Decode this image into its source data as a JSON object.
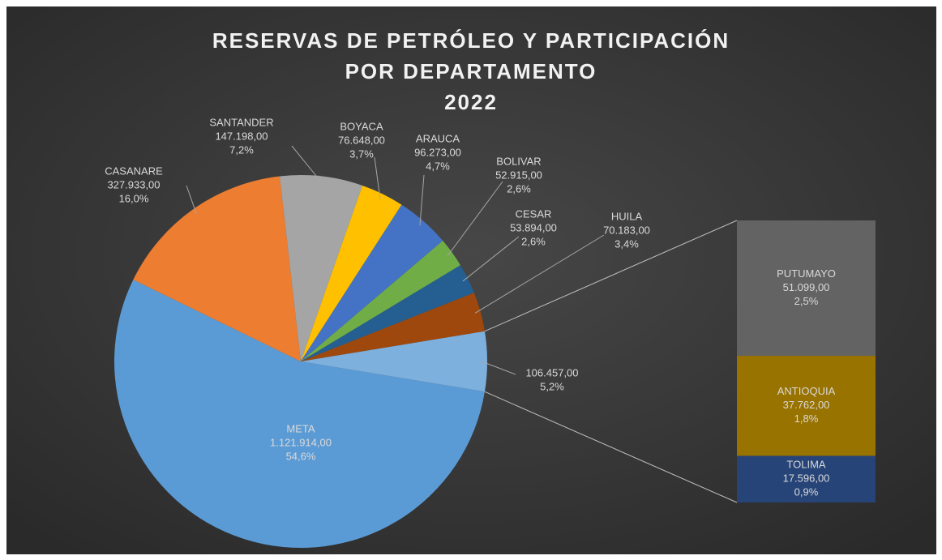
{
  "chart_data": {
    "type": "pie-of-bar",
    "title": [
      "RESERVAS DE PETRÓLEO Y PARTICIPACIÓN",
      "POR DEPARTAMENTO",
      "2022"
    ],
    "categories": [
      "META",
      "CASANARE",
      "SANTANDER",
      "BOYACA",
      "ARAUCA",
      "BOLIVAR",
      "CESAR",
      "HUILA",
      null
    ],
    "values": [
      1121914,
      327933,
      147198,
      76648,
      96273,
      52915,
      53894,
      70183,
      106457
    ],
    "value_labels": [
      "1.121.914,00",
      "327.933,00",
      "147.198,00",
      "76.648,00",
      "96.273,00",
      "52.915,00",
      "53.894,00",
      "70.183,00",
      "106.457,00"
    ],
    "percents": [
      54.6,
      16.0,
      7.2,
      3.7,
      4.7,
      2.6,
      2.6,
      3.4,
      5.2
    ],
    "percent_labels": [
      "54,6%",
      "16,0%",
      "7,2%",
      "3,7%",
      "4,7%",
      "2,6%",
      "2,6%",
      "3,4%",
      "5,2%"
    ],
    "colors": [
      "#5b9bd5",
      "#ed7d31",
      "#a5a5a5",
      "#ffc000",
      "#4472c4",
      "#70ad47",
      "#255e91",
      "#9e480e",
      "#7eb0de"
    ],
    "bar": {
      "categories": [
        "PUTUMAYO",
        "ANTIOQUIA",
        "TOLIMA"
      ],
      "values": [
        51099,
        37762,
        17596
      ],
      "value_labels": [
        "51.099,00",
        "37.762,00",
        "17.596,00"
      ],
      "percents": [
        2.5,
        1.8,
        0.9
      ],
      "percent_labels": [
        "2,5%",
        "1,8%",
        "0,9%"
      ],
      "colors": [
        "#636363",
        "#997300",
        "#264478"
      ]
    }
  }
}
